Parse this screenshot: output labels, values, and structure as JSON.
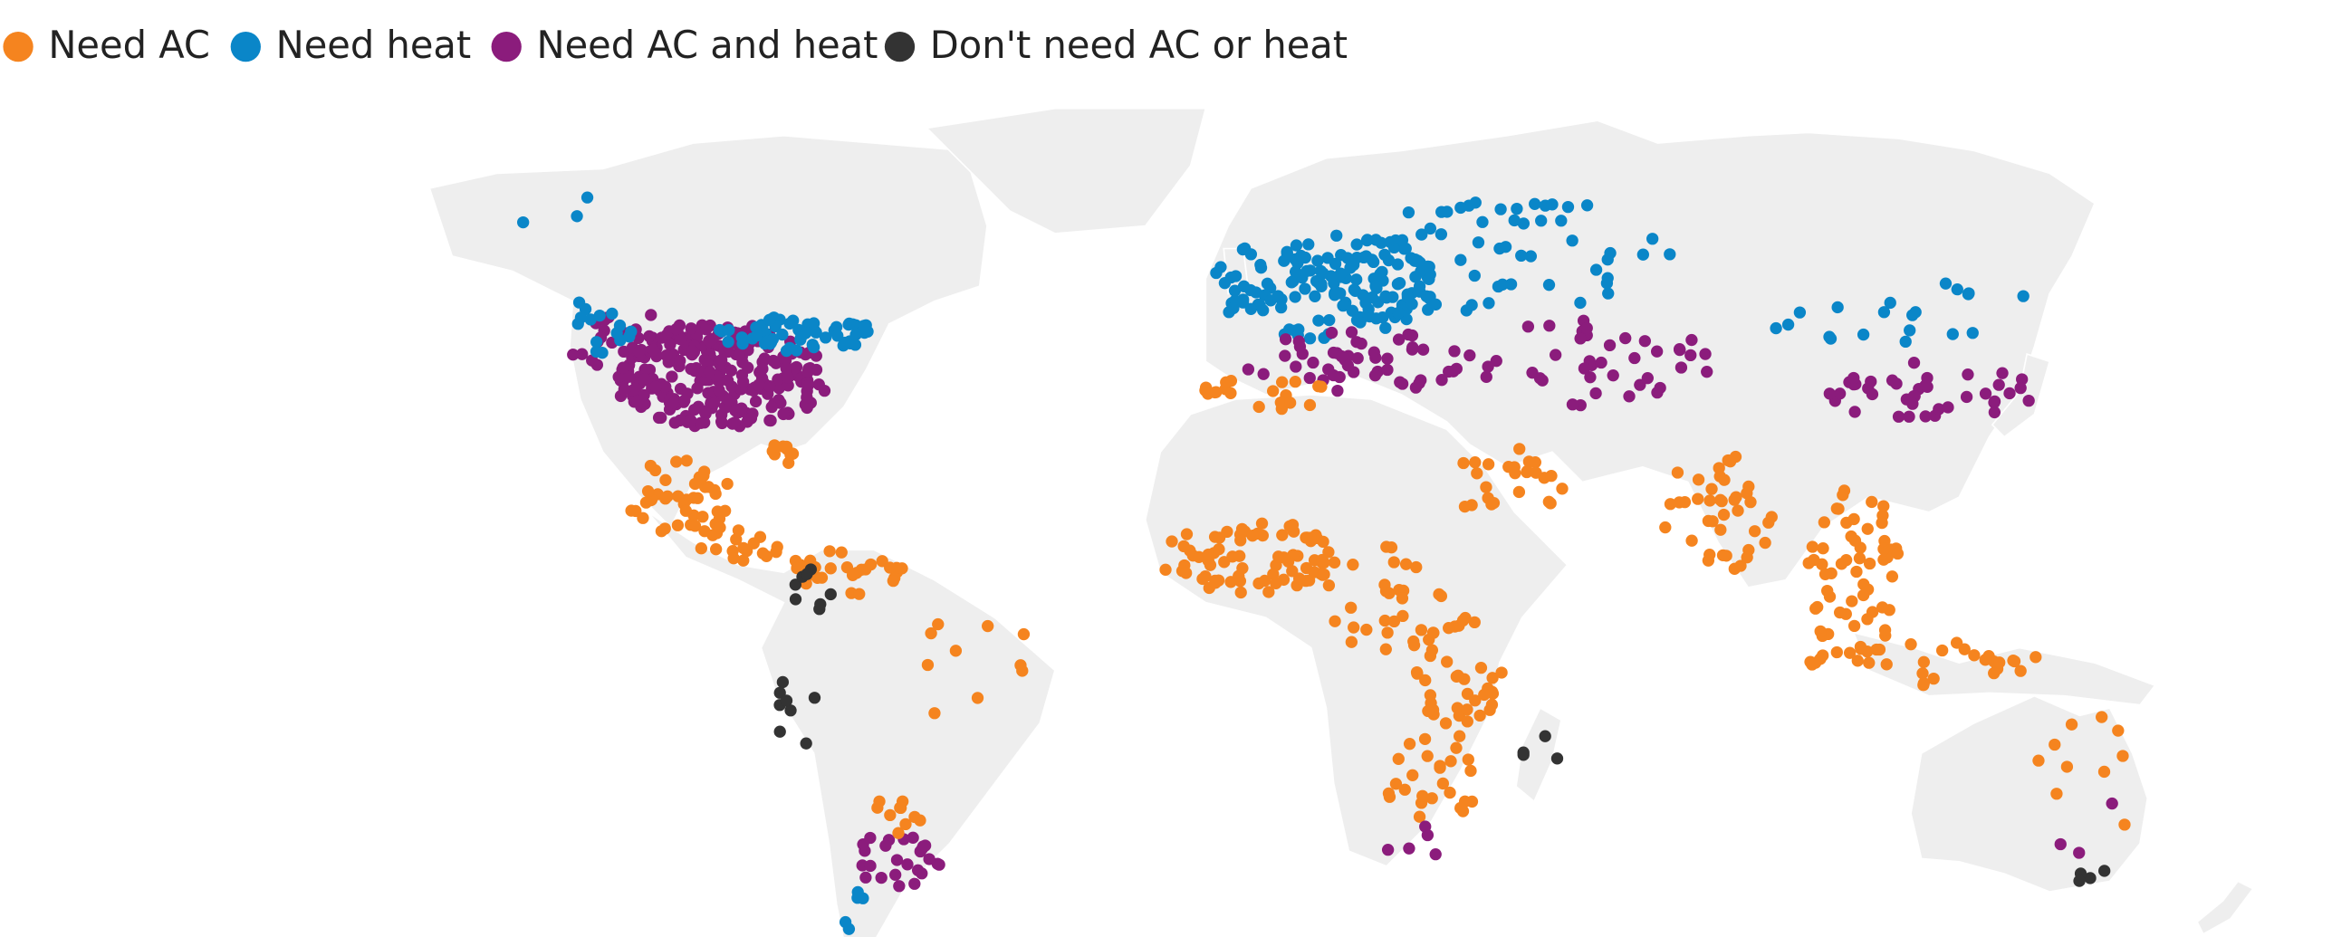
{
  "legend": [
    {
      "label": "Need AC",
      "color": "#f5841f"
    },
    {
      "label": "Need heat",
      "color": "#0a86c8"
    },
    {
      "label": "Need AC and heat",
      "color": "#8b1c7c"
    },
    {
      "label": "Don't need AC or heat",
      "color": "#333333"
    }
  ]
}
